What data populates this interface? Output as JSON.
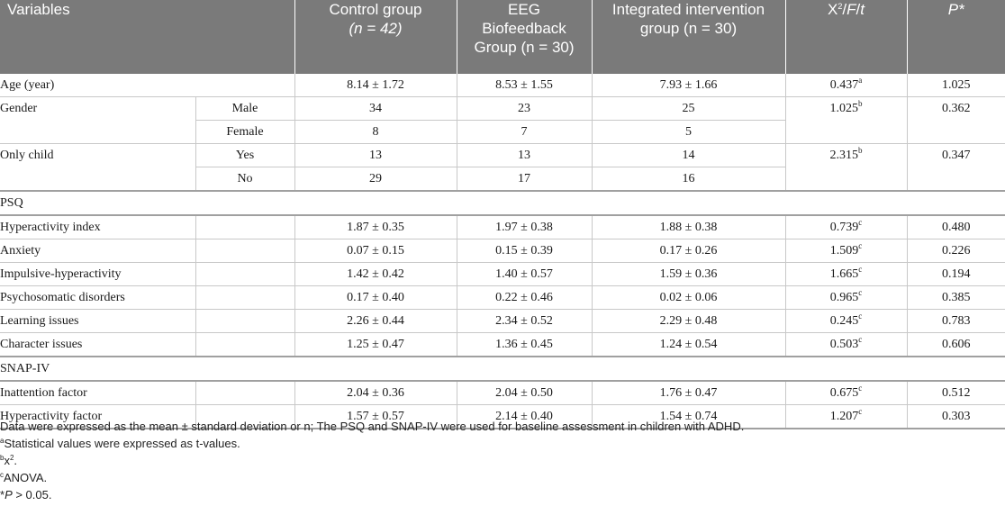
{
  "header": {
    "variables": "Variables",
    "control": "Control group",
    "control_n": "(n = 42)",
    "eeg_line1": "EEG",
    "eeg_line2": "Biofeedback",
    "eeg_line3": "Group (n = 30)",
    "integrated_line1": "Integrated intervention",
    "integrated_line2": "group (n = 30)",
    "stat": "X2/F/t",
    "p": "P*"
  },
  "rows": {
    "age": {
      "label": "Age (year)",
      "control": "8.14 ± 1.72",
      "eeg": "8.53 ± 1.55",
      "integrated": "7.93 ± 1.66",
      "stat": "0.437",
      "sup": "a",
      "p": "1.025"
    },
    "gender": {
      "label": "Gender",
      "stat": "1.025",
      "sup": "b",
      "p": "0.362",
      "male": {
        "label": "Male",
        "control": "34",
        "eeg": "23",
        "integrated": "25"
      },
      "female": {
        "label": "Female",
        "control": "8",
        "eeg": "7",
        "integrated": "5"
      }
    },
    "only_child": {
      "label": "Only child",
      "stat": "2.315",
      "sup": "b",
      "p": "0.347",
      "yes": {
        "label": "Yes",
        "control": "13",
        "eeg": "13",
        "integrated": "14"
      },
      "no": {
        "label": "No",
        "control": "29",
        "eeg": "17",
        "integrated": "16"
      }
    },
    "psq": {
      "label": "PSQ",
      "items": [
        {
          "label": "Hyperactivity index",
          "control": "1.87 ± 0.35",
          "eeg": "1.97 ± 0.38",
          "integrated": "1.88 ± 0.38",
          "stat": "0.739",
          "sup": "c",
          "p": "0.480"
        },
        {
          "label": "Anxiety",
          "control": "0.07 ± 0.15",
          "eeg": "0.15 ± 0.39",
          "integrated": "0.17 ± 0.26",
          "stat": "1.509",
          "sup": "c",
          "p": "0.226"
        },
        {
          "label": "Impulsive-hyperactivity",
          "control": "1.42 ± 0.42",
          "eeg": "1.40 ± 0.57",
          "integrated": "1.59 ± 0.36",
          "stat": "1.665",
          "sup": "c",
          "p": "0.194"
        },
        {
          "label": "Psychosomatic disorders",
          "control": "0.17 ± 0.40",
          "eeg": "0.22 ± 0.46",
          "integrated": "0.02 ± 0.06",
          "stat": "0.965",
          "sup": "c",
          "p": "0.385"
        },
        {
          "label": "Learning issues",
          "control": "2.26 ± 0.44",
          "eeg": "2.34 ± 0.52",
          "integrated": "2.29 ± 0.48",
          "stat": "0.245",
          "sup": "c",
          "p": "0.783"
        },
        {
          "label": "Character issues",
          "control": "1.25 ± 0.47",
          "eeg": "1.36 ± 0.45",
          "integrated": "1.24 ± 0.54",
          "stat": "0.503",
          "sup": "c",
          "p": "0.606"
        }
      ]
    },
    "snap": {
      "label": "SNAP-IV",
      "items": [
        {
          "label": "Inattention factor",
          "control": "2.04 ± 0.36",
          "eeg": "2.04 ± 0.50",
          "integrated": "1.76 ± 0.47",
          "stat": "0.675",
          "sup": "c",
          "p": "0.512"
        },
        {
          "label": "Hyperactivity factor",
          "control": "1.57 ± 0.57",
          "eeg": "2.14 ± 0.40",
          "integrated": "1.54 ± 0.74",
          "stat": "1.207",
          "sup": "c",
          "p": "0.303"
        }
      ]
    }
  },
  "notes": {
    "n1": "Data were expressed as the mean ± standard deviation or n; The PSQ and SNAP-IV were used for baseline assessment in children with ADHD.",
    "n2": "Statistical values were expressed as t-values.",
    "n3": "x2.",
    "n4": "ANOVA.",
    "n5": "P > 0.05."
  }
}
